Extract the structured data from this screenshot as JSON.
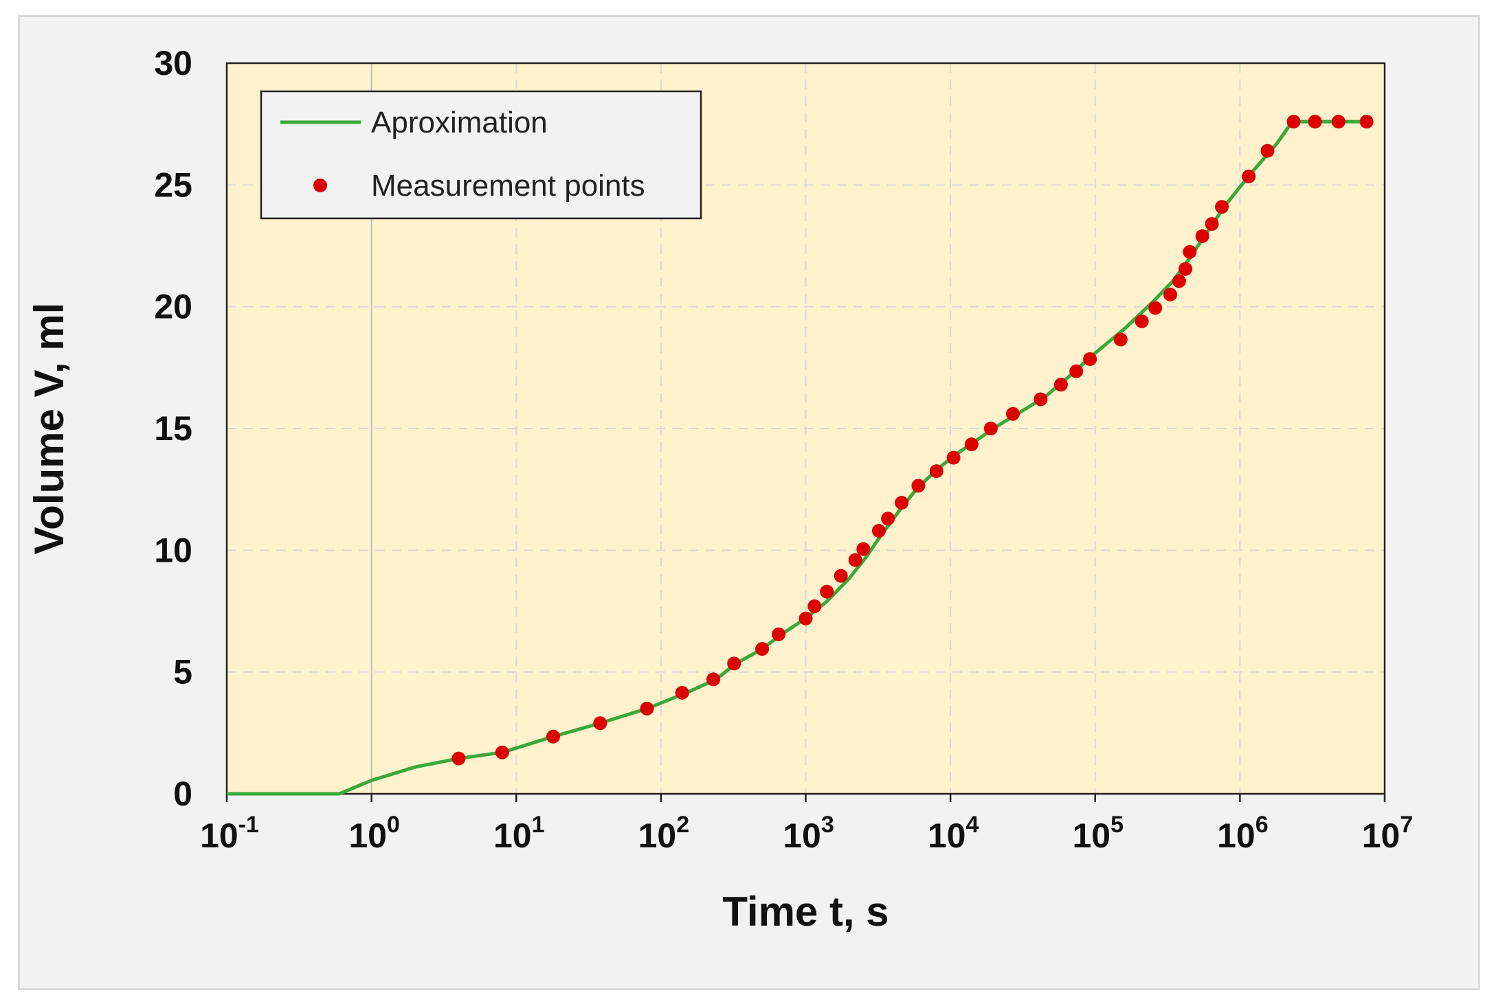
{
  "chart_data": {
    "type": "scatter",
    "xscale": "log",
    "xlim": [
      0.1,
      10000000
    ],
    "ylim": [
      0,
      30
    ],
    "grid": true,
    "legend_position": "top-left",
    "xlabel": "Time t, s",
    "ylabel": "Volume V, ml",
    "x_ticks": [
      {
        "value": 0.1,
        "base": "10",
        "exp": "-1"
      },
      {
        "value": 1,
        "base": "10",
        "exp": "0"
      },
      {
        "value": 10,
        "base": "10",
        "exp": "1"
      },
      {
        "value": 100,
        "base": "10",
        "exp": "2"
      },
      {
        "value": 1000,
        "base": "10",
        "exp": "3"
      },
      {
        "value": 10000,
        "base": "10",
        "exp": "4"
      },
      {
        "value": 100000,
        "base": "10",
        "exp": "5"
      },
      {
        "value": 1000000,
        "base": "10",
        "exp": "6"
      },
      {
        "value": 10000000,
        "base": "10",
        "exp": "7"
      }
    ],
    "y_ticks": [
      {
        "value": 0,
        "label": "0"
      },
      {
        "value": 5,
        "label": "5"
      },
      {
        "value": 10,
        "label": "10"
      },
      {
        "value": 15,
        "label": "15"
      },
      {
        "value": 20,
        "label": "20"
      },
      {
        "value": 25,
        "label": "25"
      },
      {
        "value": 30,
        "label": "30"
      }
    ],
    "series": [
      {
        "name": "Aproximation",
        "type": "line",
        "color": "#3aa83a",
        "x": [
          0.1,
          0.6,
          1,
          2,
          4,
          8,
          18,
          38,
          80,
          150,
          240,
          330,
          500,
          680,
          1000,
          1400,
          2000,
          2600,
          3300,
          4400,
          5800,
          8000,
          11000,
          15000,
          21000,
          30000,
          45000,
          65000,
          100000,
          160000,
          250000,
          350000,
          450000,
          600000,
          800000,
          1200000,
          1800000,
          2300000,
          8000000
        ],
        "values": [
          0,
          0,
          0.55,
          1.1,
          1.45,
          1.7,
          2.35,
          2.9,
          3.5,
          4.15,
          4.7,
          5.35,
          5.95,
          6.55,
          7.2,
          7.9,
          8.85,
          9.7,
          10.6,
          11.6,
          12.5,
          13.3,
          13.95,
          14.5,
          15.1,
          15.65,
          16.3,
          17.1,
          18.1,
          19.1,
          20.2,
          21.1,
          22.0,
          23.1,
          24.2,
          25.5,
          26.7,
          27.6,
          27.6
        ]
      },
      {
        "name": "Measurement points",
        "type": "scatter",
        "color": "#dd0000",
        "x": [
          4,
          8,
          18,
          38,
          80,
          140,
          230,
          320,
          500,
          650,
          1000,
          1150,
          1400,
          1750,
          2200,
          2500,
          3200,
          3700,
          4600,
          6000,
          8000,
          10500,
          14000,
          19000,
          27000,
          42000,
          58000,
          74000,
          92000,
          150000,
          210000,
          260000,
          330000,
          380000,
          420000,
          450000,
          550000,
          640000,
          750000,
          1150000,
          1550000,
          2350000,
          3300000,
          4800000,
          7500000
        ],
        "values": [
          1.45,
          1.7,
          2.35,
          2.9,
          3.5,
          4.15,
          4.7,
          5.35,
          5.95,
          6.55,
          7.2,
          7.7,
          8.3,
          8.95,
          9.6,
          10.05,
          10.8,
          11.3,
          11.95,
          12.65,
          13.25,
          13.8,
          14.35,
          15.0,
          15.6,
          16.2,
          16.8,
          17.35,
          17.85,
          18.65,
          19.4,
          19.95,
          20.5,
          21.05,
          21.55,
          22.25,
          22.9,
          23.4,
          24.1,
          25.35,
          26.4,
          27.6,
          27.6,
          27.6,
          27.6
        ]
      }
    ]
  }
}
